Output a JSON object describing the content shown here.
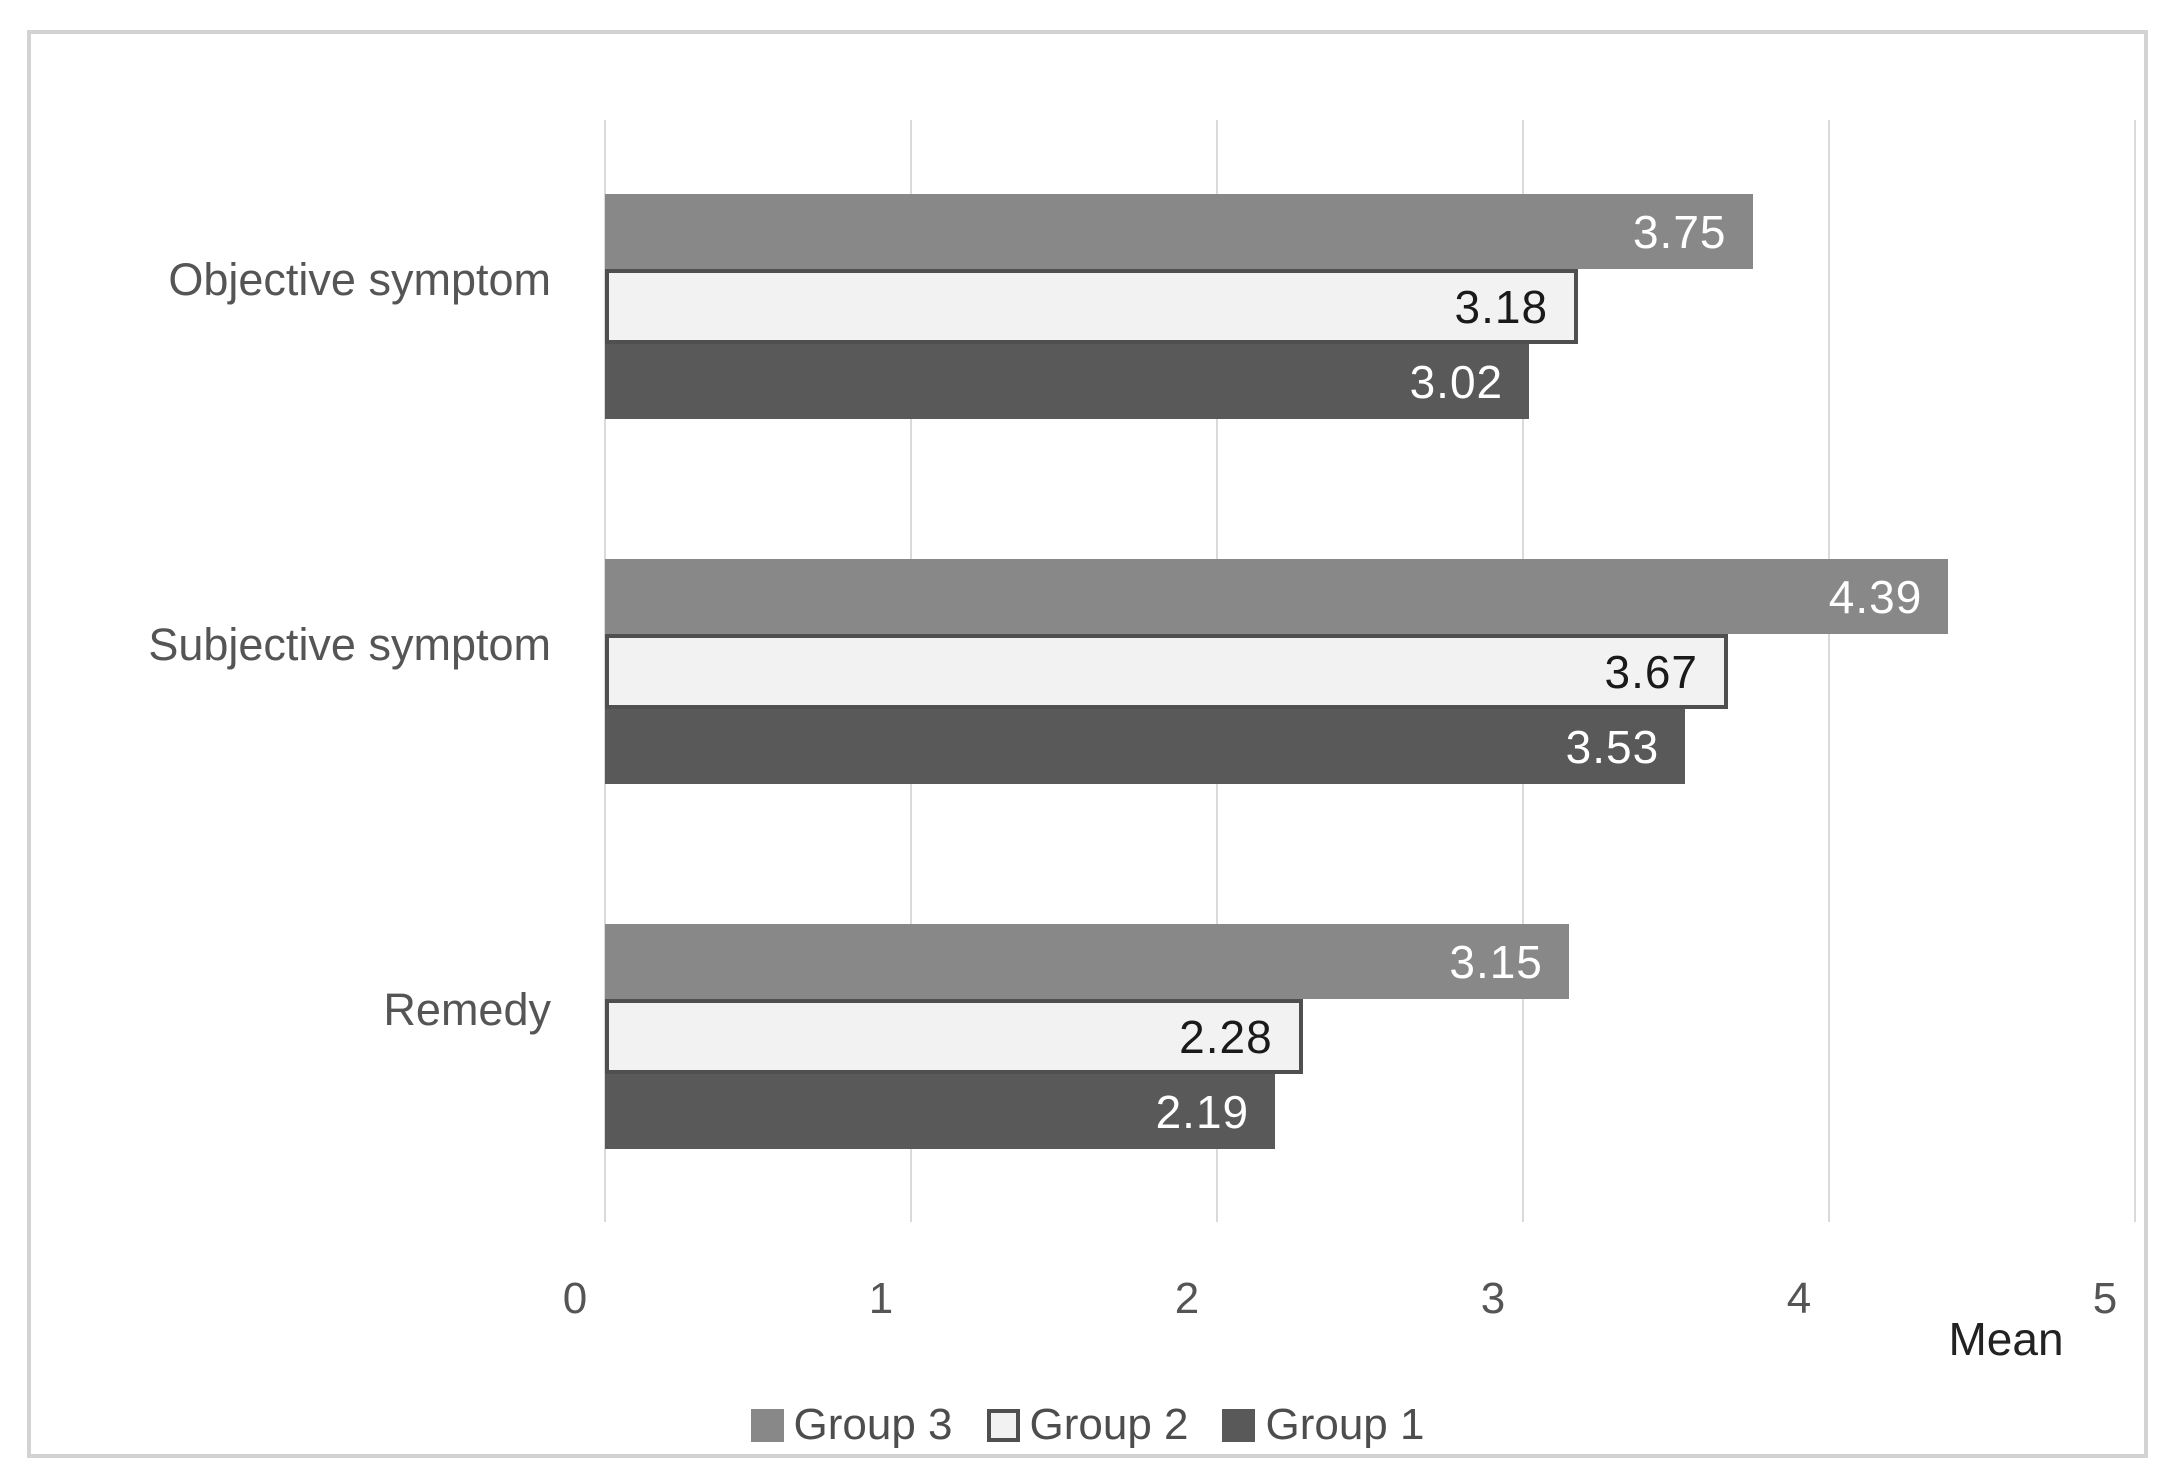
{
  "chart_data": {
    "type": "bar",
    "orientation": "horizontal",
    "categories": [
      "Objective symptom",
      "Subjective symptom",
      "Remedy"
    ],
    "series": [
      {
        "name": "Group 3",
        "values": [
          3.75,
          4.39,
          3.15
        ],
        "color": "#888888",
        "text_color": "#ffffff"
      },
      {
        "name": "Group 2",
        "values": [
          3.18,
          3.67,
          2.28
        ],
        "color": "#f2f2f2",
        "border_color": "#4f4f4f",
        "text_color": "#1a1a1a"
      },
      {
        "name": "Group 1",
        "values": [
          3.02,
          3.53,
          2.19
        ],
        "color": "#595959",
        "text_color": "#ffffff"
      }
    ],
    "xlabel": "Mean",
    "xlim": [
      0,
      5
    ],
    "xticks": [
      "0",
      "1",
      "2",
      "3",
      "4",
      "5"
    ],
    "grid": true,
    "legend_position": "bottom"
  },
  "style": {
    "gridline_color": "#dadada",
    "frame_border_color": "#d3d3d3",
    "axis_text_color": "#555555",
    "xlabel_color": "#222222",
    "background": "#ffffff"
  }
}
